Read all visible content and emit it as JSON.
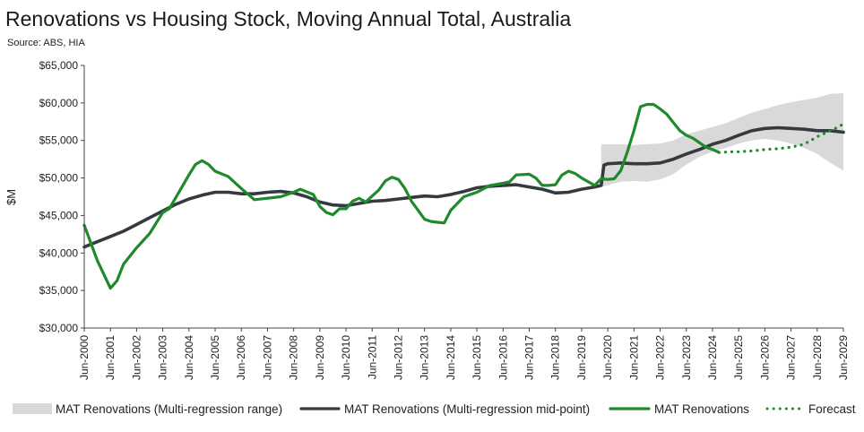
{
  "chart_data": {
    "type": "line",
    "title": "Renovations vs Housing Stock, Moving Annual Total, Australia",
    "subtitle": "Source: ABS, HIA",
    "ylabel": "$M",
    "xlabel": "",
    "ylim": [
      30000,
      65000
    ],
    "xlim": [
      2000,
      2029
    ],
    "y_ticks": [
      30000,
      35000,
      40000,
      45000,
      50000,
      55000,
      60000,
      65000
    ],
    "y_tick_labels": [
      "$30,000",
      "$35,000",
      "$40,000",
      "$45,000",
      "$50,000",
      "$55,000",
      "$60,000",
      "$65,000"
    ],
    "x_ticks": [
      2000,
      2001,
      2002,
      2003,
      2004,
      2005,
      2006,
      2007,
      2008,
      2009,
      2010,
      2011,
      2012,
      2013,
      2014,
      2015,
      2016,
      2017,
      2018,
      2019,
      2020,
      2021,
      2022,
      2023,
      2024,
      2025,
      2026,
      2027,
      2028,
      2029
    ],
    "x_tick_labels": [
      "Jun-2000",
      "Jun-2001",
      "Jun-2002",
      "Jun-2003",
      "Jun-2004",
      "Jun-2005",
      "Jun-2006",
      "Jun-2007",
      "Jun-2008",
      "Jun-2009",
      "Jun-2010",
      "Jun-2011",
      "Jun-2012",
      "Jun-2013",
      "Jun-2014",
      "Jun-2015",
      "Jun-2016",
      "Jun-2017",
      "Jun-2018",
      "Jun-2019",
      "Jun-2020",
      "Jun-2021",
      "Jun-2022",
      "Jun-2023",
      "Jun-2024",
      "Jun-2025",
      "Jun-2026",
      "Jun-2027",
      "Jun-2028",
      "Jun-2029"
    ],
    "legend_position": "bottom",
    "series": [
      {
        "name": "MAT Renovations (Multi-regression range)",
        "kind": "band",
        "color": "#d9d9d9",
        "x": [
          2019.75,
          2020.5,
          2021.0,
          2021.5,
          2022.0,
          2022.5,
          2023.0,
          2023.5,
          2024.0,
          2024.5,
          2025.0,
          2025.5,
          2026.0,
          2026.5,
          2027.0,
          2027.5,
          2028.0,
          2028.5,
          2029.0
        ],
        "lower": [
          48800,
          49500,
          49600,
          49500,
          49800,
          50500,
          51800,
          52800,
          53500,
          54000,
          54600,
          55000,
          55200,
          55000,
          54600,
          54000,
          53200,
          52000,
          51000
        ],
        "upper": [
          54500,
          54500,
          54400,
          54500,
          54600,
          55000,
          55800,
          56300,
          56800,
          57300,
          58000,
          58700,
          59200,
          59700,
          60100,
          60400,
          60700,
          61200,
          61300
        ]
      },
      {
        "name": "MAT Renovations (Multi-regression mid-point)",
        "kind": "line",
        "color": "#353a3f",
        "x": [
          2000,
          2000.5,
          2001,
          2001.5,
          2002,
          2002.5,
          2003,
          2003.5,
          2004,
          2004.5,
          2005,
          2005.5,
          2006,
          2006.5,
          2007,
          2007.5,
          2008,
          2008.5,
          2009,
          2009.5,
          2010,
          2010.5,
          2011,
          2011.5,
          2012,
          2012.5,
          2013,
          2013.5,
          2014,
          2014.5,
          2015,
          2015.5,
          2016,
          2016.5,
          2017,
          2017.5,
          2018,
          2018.5,
          2019,
          2019.5,
          2019.75,
          2019.85,
          2020.0,
          2020.5,
          2021,
          2021.5,
          2022,
          2022.5,
          2023,
          2023.5,
          2024,
          2024.5,
          2025,
          2025.5,
          2026,
          2026.5,
          2027,
          2027.5,
          2028,
          2028.5,
          2029
        ],
        "values": [
          40800,
          41500,
          42200,
          42900,
          43800,
          44700,
          45600,
          46500,
          47200,
          47700,
          48100,
          48100,
          47900,
          47900,
          48100,
          48200,
          48000,
          47500,
          46800,
          46400,
          46300,
          46600,
          46900,
          47000,
          47200,
          47400,
          47600,
          47500,
          47800,
          48200,
          48700,
          48900,
          49000,
          49100,
          48800,
          48500,
          48000,
          48100,
          48500,
          48800,
          49000,
          51700,
          51900,
          52000,
          51900,
          51900,
          52000,
          52500,
          53200,
          53800,
          54500,
          55000,
          55700,
          56300,
          56600,
          56700,
          56600,
          56500,
          56300,
          56300,
          56100
        ]
      },
      {
        "name": "MAT Renovations",
        "kind": "line",
        "color": "#1f8a2b",
        "x": [
          2000,
          2000.5,
          2001,
          2001.25,
          2001.5,
          2002,
          2002.5,
          2003,
          2003.25,
          2003.5,
          2004,
          2004.25,
          2004.5,
          2004.75,
          2005,
          2005.5,
          2006,
          2006.5,
          2007,
          2007.5,
          2008,
          2008.25,
          2008.75,
          2009,
          2009.25,
          2009.5,
          2009.75,
          2010,
          2010.25,
          2010.5,
          2010.75,
          2011,
          2011.25,
          2011.5,
          2011.75,
          2012,
          2012.25,
          2012.5,
          2012.75,
          2013,
          2013.25,
          2013.5,
          2013.75,
          2014,
          2014.5,
          2015,
          2015.5,
          2016,
          2016.25,
          2016.5,
          2017,
          2017.25,
          2017.5,
          2017.75,
          2018,
          2018.25,
          2018.5,
          2018.75,
          2019,
          2019.25,
          2019.5,
          2019.75,
          2020,
          2020.25,
          2020.5,
          2020.75,
          2021,
          2021.25,
          2021.5,
          2021.75,
          2022,
          2022.25,
          2022.5,
          2022.75,
          2023,
          2023.25,
          2023.5,
          2023.75,
          2024,
          2024.25
        ],
        "values": [
          43700,
          39000,
          35300,
          36300,
          38500,
          40700,
          42600,
          45400,
          45900,
          47400,
          50400,
          51800,
          52300,
          51800,
          50900,
          50200,
          48600,
          47100,
          47300,
          47500,
          48100,
          48500,
          47800,
          46200,
          45400,
          45100,
          45900,
          45900,
          46900,
          47300,
          46800,
          47600,
          48400,
          49600,
          50100,
          49800,
          48600,
          46900,
          45700,
          44500,
          44200,
          44100,
          44000,
          45700,
          47500,
          48100,
          49000,
          49300,
          49500,
          50400,
          50500,
          50000,
          49000,
          49000,
          49100,
          50400,
          50900,
          50600,
          50000,
          49500,
          49000,
          49900,
          49800,
          49900,
          51000,
          53500,
          56300,
          59500,
          59800,
          59800,
          59200,
          58500,
          57400,
          56300,
          55700,
          55300,
          54700,
          54100,
          53800,
          53400
        ]
      },
      {
        "name": "Forecast",
        "kind": "dotted",
        "color": "#1f8a2b",
        "x": [
          2024.25,
          2024.75,
          2025,
          2025.5,
          2026,
          2026.5,
          2027,
          2027.5,
          2028,
          2028.5,
          2028.75,
          2029
        ],
        "values": [
          53400,
          53500,
          53500,
          53600,
          53800,
          53900,
          54100,
          54500,
          55500,
          56300,
          56700,
          57200
        ]
      }
    ]
  }
}
